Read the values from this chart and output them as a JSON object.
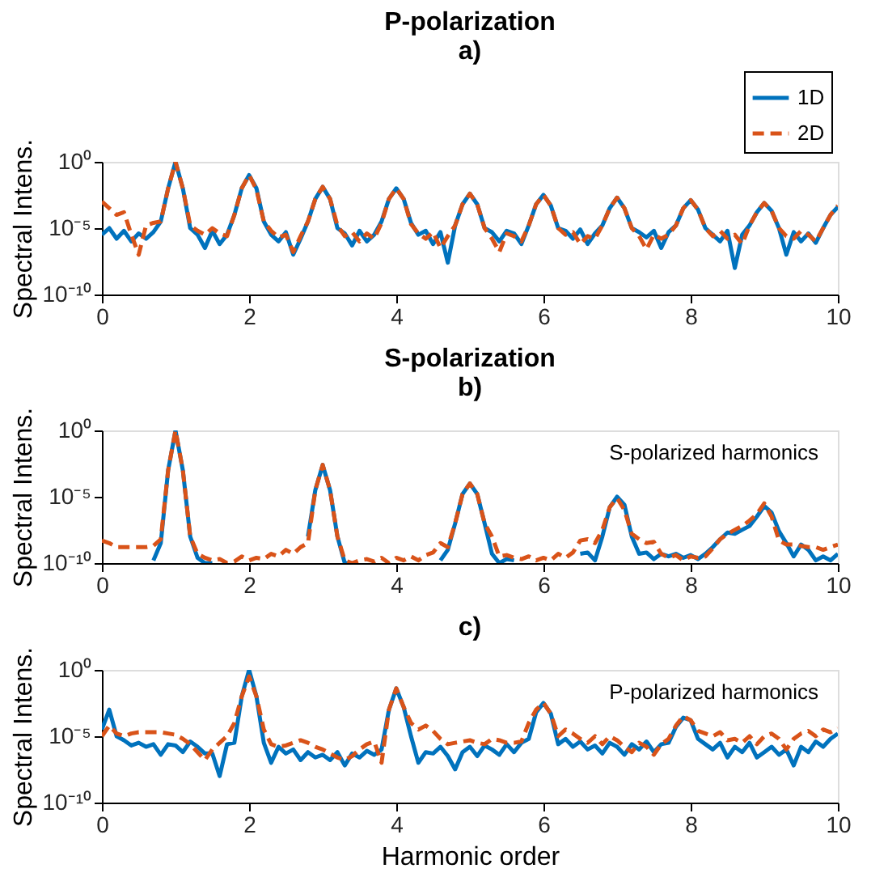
{
  "chart_data": [
    {
      "type": "line",
      "title": "P-polarization",
      "subtitle": "a)",
      "ylabel": "Spectral Intens.",
      "log": true,
      "grid": false,
      "legend": "top right",
      "xlim": [
        0,
        10
      ],
      "xticks": [
        0,
        2,
        4,
        6,
        8,
        10
      ],
      "ylim": [
        1e-10,
        1
      ],
      "yticks": [
        {
          "value": 1e-10,
          "label": "10⁻¹⁰"
        },
        {
          "value": 1e-05,
          "label": "10⁻⁵"
        },
        {
          "value": 1,
          "label": "10⁰"
        }
      ],
      "x": [
        0,
        0.1,
        0.2,
        0.3,
        0.4,
        0.5,
        0.6,
        0.7,
        0.8,
        0.9,
        1,
        1.1,
        1.2,
        1.3,
        1.4,
        1.5,
        1.6,
        1.7,
        1.8,
        1.9,
        2,
        2.1,
        2.2,
        2.3,
        2.4,
        2.5,
        2.6,
        2.7,
        2.8,
        2.9,
        3,
        3.1,
        3.2,
        3.3,
        3.4,
        3.5,
        3.6,
        3.7,
        3.8,
        3.9,
        4,
        4.1,
        4.2,
        4.3,
        4.4,
        4.5,
        4.6,
        4.7,
        4.8,
        4.9,
        5,
        5.1,
        5.2,
        5.3,
        5.4,
        5.5,
        5.6,
        5.7,
        5.8,
        5.9,
        6,
        6.1,
        6.2,
        6.3,
        6.4,
        6.5,
        6.6,
        6.7,
        6.8,
        6.9,
        7,
        7.1,
        7.2,
        7.3,
        7.4,
        7.5,
        7.6,
        7.7,
        7.8,
        7.9,
        8,
        8.1,
        8.2,
        8.3,
        8.4,
        8.5,
        8.6,
        8.7,
        8.8,
        8.9,
        9,
        9.1,
        9.2,
        9.3,
        9.4,
        9.5,
        9.6,
        9.7,
        9.8,
        9.9,
        10
      ],
      "series": [
        {
          "name": "1D",
          "color": "#0072bd",
          "line_style": "solid",
          "values": [
            3.2e-06,
            1e-05,
            1.6e-06,
            6.3e-06,
            1e-06,
            4e-06,
            1.6e-06,
            5e-06,
            3.2e-05,
            0.01,
            1,
            0.01,
            1e-05,
            3.2e-06,
            3.2e-07,
            6.3e-06,
            6.3e-07,
            3.2e-06,
            0.0001,
            0.01,
            0.1,
            0.01,
            3.2e-05,
            3.2e-06,
            1e-06,
            5e-06,
            1e-07,
            1.6e-06,
            3.2e-05,
            0.0016,
            0.013,
            0.0016,
            1e-05,
            4e-06,
            5e-07,
            6.3e-06,
            1e-06,
            3.2e-06,
            3.2e-05,
            0.0016,
            0.01,
            0.0016,
            2.5e-05,
            3.2e-06,
            6.3e-06,
            6.3e-07,
            5e-06,
            2.5e-08,
            1.6e-05,
            0.00063,
            0.004,
            0.00063,
            1e-05,
            5e-06,
            1e-06,
            6.3e-06,
            4e-06,
            6.3e-07,
            1.6e-05,
            0.00063,
            0.0032,
            0.0005,
            1e-05,
            6.3e-06,
            1.6e-06,
            7.9e-06,
            6.3e-07,
            4e-06,
            1.6e-05,
            0.00032,
            0.002,
            0.00032,
            1e-05,
            5e-06,
            2e-06,
            6.3e-06,
            3.2e-07,
            5e-06,
            1.6e-05,
            0.00032,
            0.0013,
            0.00025,
            1e-05,
            3.2e-06,
            1e-06,
            6.3e-06,
            1e-08,
            3.2e-06,
            1.6e-05,
            0.00016,
            0.00079,
            0.0002,
            1e-05,
            1e-07,
            5e-06,
            1e-06,
            4e-06,
            7.9e-07,
            1e-05,
            0.0001,
            0.0004
          ]
        },
        {
          "name": "2D",
          "color": "#d95319",
          "line_style": "dashed",
          "values": [
            0.001,
            0.00032,
            0.0001,
            0.00016,
            3.2e-06,
            1e-07,
            1.6e-05,
            2.5e-05,
            3.2e-05,
            0.01,
            1,
            0.01,
            1.6e-05,
            6.3e-06,
            3.2e-06,
            1e-05,
            4e-06,
            2.5e-06,
            0.0001,
            0.01,
            0.1,
            0.0079,
            3.2e-05,
            6.3e-06,
            2e-06,
            3.2e-06,
            1.6e-07,
            2.5e-06,
            3.2e-05,
            0.0016,
            0.013,
            0.0016,
            1.6e-05,
            2.5e-06,
            5e-06,
            1e-06,
            4e-06,
            1.6e-06,
            2.5e-05,
            0.0016,
            0.01,
            0.0016,
            2e-05,
            4e-06,
            1.6e-06,
            5e-06,
            3.2e-07,
            2.5e-06,
            1.6e-05,
            0.00063,
            0.004,
            0.00063,
            1e-05,
            1.6e-06,
            1.6e-07,
            4e-06,
            2.5e-06,
            1e-06,
            1.6e-05,
            0.00063,
            0.0032,
            0.0005,
            1e-05,
            3.2e-06,
            5e-06,
            6.3e-07,
            2.5e-06,
            1.6e-06,
            1.6e-05,
            0.00032,
            0.002,
            0.00032,
            1e-05,
            2.5e-06,
            2.5e-07,
            3.2e-06,
            1.6e-06,
            3.2e-06,
            1.6e-05,
            0.00032,
            0.0013,
            0.00025,
            1e-05,
            2.5e-06,
            6.3e-06,
            1.6e-06,
            3.2e-06,
            6.3e-07,
            1.6e-05,
            0.00016,
            0.00079,
            0.0002,
            1e-05,
            2.5e-06,
            1.6e-06,
            6.3e-06,
            3.2e-06,
            1e-06,
            1e-05,
            0.0001,
            0.0005
          ]
        }
      ]
    },
    {
      "type": "line",
      "title": "S-polarization",
      "subtitle": "b)",
      "ylabel": "Spectral Intens.",
      "log": true,
      "grid": false,
      "annotations": [
        "S-polarized harmonics"
      ],
      "xlim": [
        0,
        10
      ],
      "xticks": [
        0,
        2,
        4,
        6,
        8,
        10
      ],
      "ylim": [
        1e-10,
        1
      ],
      "yticks": [
        {
          "value": 1e-10,
          "label": "10⁻¹⁰"
        },
        {
          "value": 1e-05,
          "label": "10⁻⁵"
        },
        {
          "value": 1,
          "label": "10⁰"
        }
      ],
      "x": [
        0,
        0.1,
        0.2,
        0.3,
        0.4,
        0.5,
        0.6,
        0.7,
        0.8,
        0.9,
        1,
        1.1,
        1.2,
        1.3,
        1.4,
        1.5,
        1.6,
        1.7,
        1.8,
        1.9,
        2,
        2.1,
        2.2,
        2.3,
        2.4,
        2.5,
        2.6,
        2.7,
        2.8,
        2.9,
        3,
        3.1,
        3.2,
        3.3,
        3.4,
        3.5,
        3.6,
        3.7,
        3.8,
        3.9,
        4,
        4.1,
        4.2,
        4.3,
        4.4,
        4.5,
        4.6,
        4.7,
        4.8,
        4.9,
        5,
        5.1,
        5.2,
        5.3,
        5.4,
        5.5,
        5.6,
        5.7,
        5.8,
        5.9,
        6,
        6.1,
        6.2,
        6.3,
        6.4,
        6.5,
        6.6,
        6.7,
        6.8,
        6.9,
        7,
        7.1,
        7.2,
        7.3,
        7.4,
        7.5,
        7.6,
        7.7,
        7.8,
        7.9,
        8,
        8.1,
        8.2,
        8.3,
        8.4,
        8.5,
        8.6,
        8.7,
        8.8,
        8.9,
        9,
        9.1,
        9.2,
        9.3,
        9.4,
        9.5,
        9.6,
        9.7,
        9.8,
        9.9,
        10
      ],
      "series": [
        {
          "color": "#0072bd",
          "line_style": "solid",
          "values": [
            null,
            null,
            null,
            null,
            null,
            null,
            null,
            1.6e-10,
            3.2e-09,
            0.001,
            1,
            0.001,
            1e-08,
            2.5e-10,
            1e-10,
            1e-10,
            null,
            null,
            null,
            null,
            null,
            null,
            null,
            null,
            null,
            null,
            null,
            null,
            1e-08,
            3.2e-05,
            0.0025,
            3.2e-05,
            1e-08,
            1e-10,
            1e-10,
            null,
            null,
            null,
            null,
            null,
            null,
            null,
            null,
            null,
            null,
            null,
            1.6e-10,
            1e-09,
            1e-07,
            1.6e-05,
            0.0001,
            1.6e-05,
            1e-07,
            5e-10,
            1e-10,
            2e-10,
            1.6e-10,
            null,
            null,
            null,
            null,
            null,
            null,
            null,
            null,
            5e-10,
            6.3e-10,
            1.6e-10,
            1e-08,
            1.6e-06,
            1e-05,
            2.5e-06,
            1e-08,
            5e-10,
            6.3e-10,
            2e-10,
            5e-10,
            3.2e-10,
            5e-10,
            2.5e-10,
            4e-10,
            2e-10,
            5e-10,
            1.6e-09,
            6.3e-09,
            2e-08,
            1.6e-08,
            3.2e-08,
            6.3e-08,
            3.2e-07,
            2e-06,
            6.3e-07,
            2.5e-08,
            3.2e-09,
            3.2e-10,
            2.5e-09,
            1e-09,
            1.6e-10,
            3.2e-10,
            1.6e-10,
            5e-10
          ]
        },
        {
          "color": "#d95319",
          "line_style": "dashed",
          "values": [
            5e-09,
            3.2e-09,
            1.6e-09,
            1.6e-09,
            1.6e-09,
            1.6e-09,
            1.6e-09,
            2e-09,
            6.3e-09,
            0.001,
            1,
            0.001,
            1e-08,
            5e-10,
            2.5e-10,
            1.6e-10,
            2e-10,
            1e-10,
            1.3e-10,
            3.2e-10,
            1.6e-10,
            2.5e-10,
            2e-10,
            5e-10,
            3.2e-10,
            1e-09,
            5e-10,
            1.6e-09,
            3.2e-09,
            3.2e-05,
            0.0025,
            3.2e-05,
            1e-08,
            1.6e-10,
            1e-10,
            1.6e-10,
            2e-10,
            1.3e-10,
            2.5e-10,
            1e-10,
            2.5e-10,
            1.6e-10,
            3.2e-10,
            1.6e-10,
            4e-10,
            6.3e-10,
            3.2e-09,
            1.6e-09,
            1e-07,
            1.6e-05,
            0.0001,
            1.6e-05,
            1e-07,
            1e-08,
            3.2e-10,
            4e-10,
            2.5e-10,
            2e-10,
            3.2e-10,
            1.6e-10,
            2.5e-10,
            1.6e-10,
            5e-10,
            2.5e-10,
            6.3e-10,
            5e-09,
            6.3e-09,
            3.2e-09,
            3.2e-08,
            1.6e-06,
            7.9e-06,
            1e-06,
            1.6e-08,
            6.3e-09,
            3.2e-09,
            4e-09,
            5e-10,
            2.5e-10,
            4e-10,
            1.6e-10,
            3.2e-10,
            2.5e-10,
            3.2e-10,
            1.3e-09,
            6.3e-09,
            1.6e-08,
            3.2e-08,
            6.3e-08,
            1.6e-07,
            5e-07,
            3.2e-06,
            3.2e-07,
            5e-09,
            2.5e-09,
            2.5e-09,
            2e-09,
            1.6e-09,
            1.6e-09,
            1e-09,
            1.6e-09,
            2.5e-09
          ]
        }
      ]
    },
    {
      "type": "line",
      "title": "c)",
      "ylabel": "Spectral Intens.",
      "xlabel": "Harmonic order",
      "log": true,
      "grid": false,
      "annotations": [
        "P-polarized harmonics"
      ],
      "xlim": [
        0,
        10
      ],
      "xticks": [
        0,
        2,
        4,
        6,
        8,
        10
      ],
      "ylim": [
        1e-10,
        1
      ],
      "yticks": [
        {
          "value": 1e-10,
          "label": "10⁻¹⁰"
        },
        {
          "value": 1e-05,
          "label": "10⁻⁵"
        },
        {
          "value": 1,
          "label": "10⁰"
        }
      ],
      "x": [
        0,
        0.1,
        0.2,
        0.3,
        0.4,
        0.5,
        0.6,
        0.7,
        0.8,
        0.9,
        1,
        1.1,
        1.2,
        1.3,
        1.4,
        1.5,
        1.6,
        1.7,
        1.8,
        1.9,
        2,
        2.1,
        2.2,
        2.3,
        2.4,
        2.5,
        2.6,
        2.7,
        2.8,
        2.9,
        3,
        3.1,
        3.2,
        3.3,
        3.4,
        3.5,
        3.6,
        3.7,
        3.8,
        3.9,
        4,
        4.1,
        4.2,
        4.3,
        4.4,
        4.5,
        4.6,
        4.7,
        4.8,
        4.9,
        5,
        5.1,
        5.2,
        5.3,
        5.4,
        5.5,
        5.6,
        5.7,
        5.8,
        5.9,
        6,
        6.1,
        6.2,
        6.3,
        6.4,
        6.5,
        6.6,
        6.7,
        6.8,
        6.9,
        7,
        7.1,
        7.2,
        7.3,
        7.4,
        7.5,
        7.6,
        7.7,
        7.8,
        7.9,
        8,
        8.1,
        8.2,
        8.3,
        8.4,
        8.5,
        8.6,
        8.7,
        8.8,
        8.9,
        9,
        9.1,
        9.2,
        9.3,
        9.4,
        9.5,
        9.6,
        9.7,
        9.8,
        9.9,
        10
      ],
      "series": [
        {
          "color": "#0072bd",
          "line_style": "solid",
          "values": [
            3.2e-05,
            0.001,
            1e-05,
            5e-06,
            2e-06,
            3.2e-06,
            1.6e-06,
            2.5e-06,
            4e-07,
            2.5e-06,
            2e-06,
            6.3e-07,
            4e-06,
            1.6e-06,
            5e-07,
            5e-07,
            1e-08,
            2.5e-06,
            3.2e-06,
            0.01,
            1,
            0.01,
            3.2e-06,
            1e-07,
            1.6e-06,
            5e-07,
            1e-06,
            1.6e-07,
            6.3e-07,
            2.5e-07,
            4e-07,
            1.6e-07,
            6.3e-07,
            6.3e-08,
            5e-07,
            2.5e-07,
            7.9e-07,
            4e-07,
            1e-06,
            0.001,
            0.04,
            0.0016,
            1e-05,
            1e-07,
            6.3e-07,
            5e-07,
            1.6e-06,
            3.2e-07,
            3.2e-08,
            6.3e-07,
            1.6e-06,
            3.2e-07,
            2e-06,
            1e-06,
            4e-07,
            2.5e-06,
            6.3e-07,
            3.2e-06,
            6.3e-06,
            0.00063,
            0.0032,
            0.0005,
            2.5e-06,
            6.3e-06,
            1.6e-06,
            4e-06,
            1e-06,
            2e-06,
            5e-07,
            3.2e-06,
            1.6e-06,
            4e-07,
            2.5e-06,
            1e-06,
            4e-06,
            6.3e-07,
            2.5e-06,
            3.2e-06,
            5e-05,
            0.00025,
            0.00016,
            6.3e-06,
            2.5e-06,
            1e-06,
            3.2e-06,
            2.5e-07,
            1.6e-06,
            6.3e-07,
            3.2e-06,
            2.5e-07,
            6.3e-07,
            1.6e-06,
            4e-07,
            1e-06,
            6.3e-08,
            1.6e-06,
            6.3e-07,
            4e-06,
            1.6e-06,
            6.3e-06,
            1.6e-05
          ]
        },
        {
          "color": "#d95319",
          "line_style": "dashed",
          "values": [
            1e-05,
            6.3e-05,
            1.6e-05,
            1e-05,
            1.6e-05,
            2e-05,
            2e-05,
            2e-05,
            2e-05,
            1.6e-05,
            1.3e-05,
            6.3e-06,
            2.5e-06,
            6.3e-07,
            1.6e-07,
            1e-06,
            3.2e-06,
            1e-05,
            0.0001,
            0.01,
            0.32,
            0.01,
            3.2e-05,
            2.5e-06,
            1.6e-06,
            2e-06,
            3.2e-06,
            5e-06,
            3.2e-06,
            1.6e-06,
            1e-06,
            5e-07,
            2.5e-07,
            1.6e-07,
            3.2e-07,
            1e-06,
            2.5e-06,
            4e-06,
            1e-07,
            0.001,
            0.04,
            0.0016,
            0.0001,
            3.2e-05,
            6.3e-05,
            2.5e-05,
            6.3e-06,
            2.5e-06,
            3.2e-06,
            4e-06,
            5e-06,
            3.2e-06,
            2.5e-06,
            6.3e-06,
            5e-06,
            3.2e-06,
            3.2e-06,
            4e-06,
            0.0001,
            0.001,
            0.0032,
            0.0005,
            1e-05,
            3.2e-05,
            1.6e-05,
            6.3e-06,
            3.2e-06,
            1e-05,
            2.5e-06,
            1e-05,
            5e-06,
            1.6e-06,
            6.3e-07,
            3.2e-06,
            1.6e-06,
            4e-07,
            2.5e-06,
            6.3e-06,
            6.3e-05,
            0.00032,
            0.00016,
            2.5e-05,
            1.6e-05,
            1e-05,
            2e-05,
            5e-06,
            6.3e-06,
            3.2e-06,
            1e-05,
            2.5e-06,
            1e-05,
            1.6e-05,
            6.3e-06,
            1e-06,
            6.3e-06,
            1.6e-05,
            2.5e-05,
            1e-05,
            3.2e-05,
            2e-05,
            4e-05
          ]
        }
      ]
    }
  ]
}
